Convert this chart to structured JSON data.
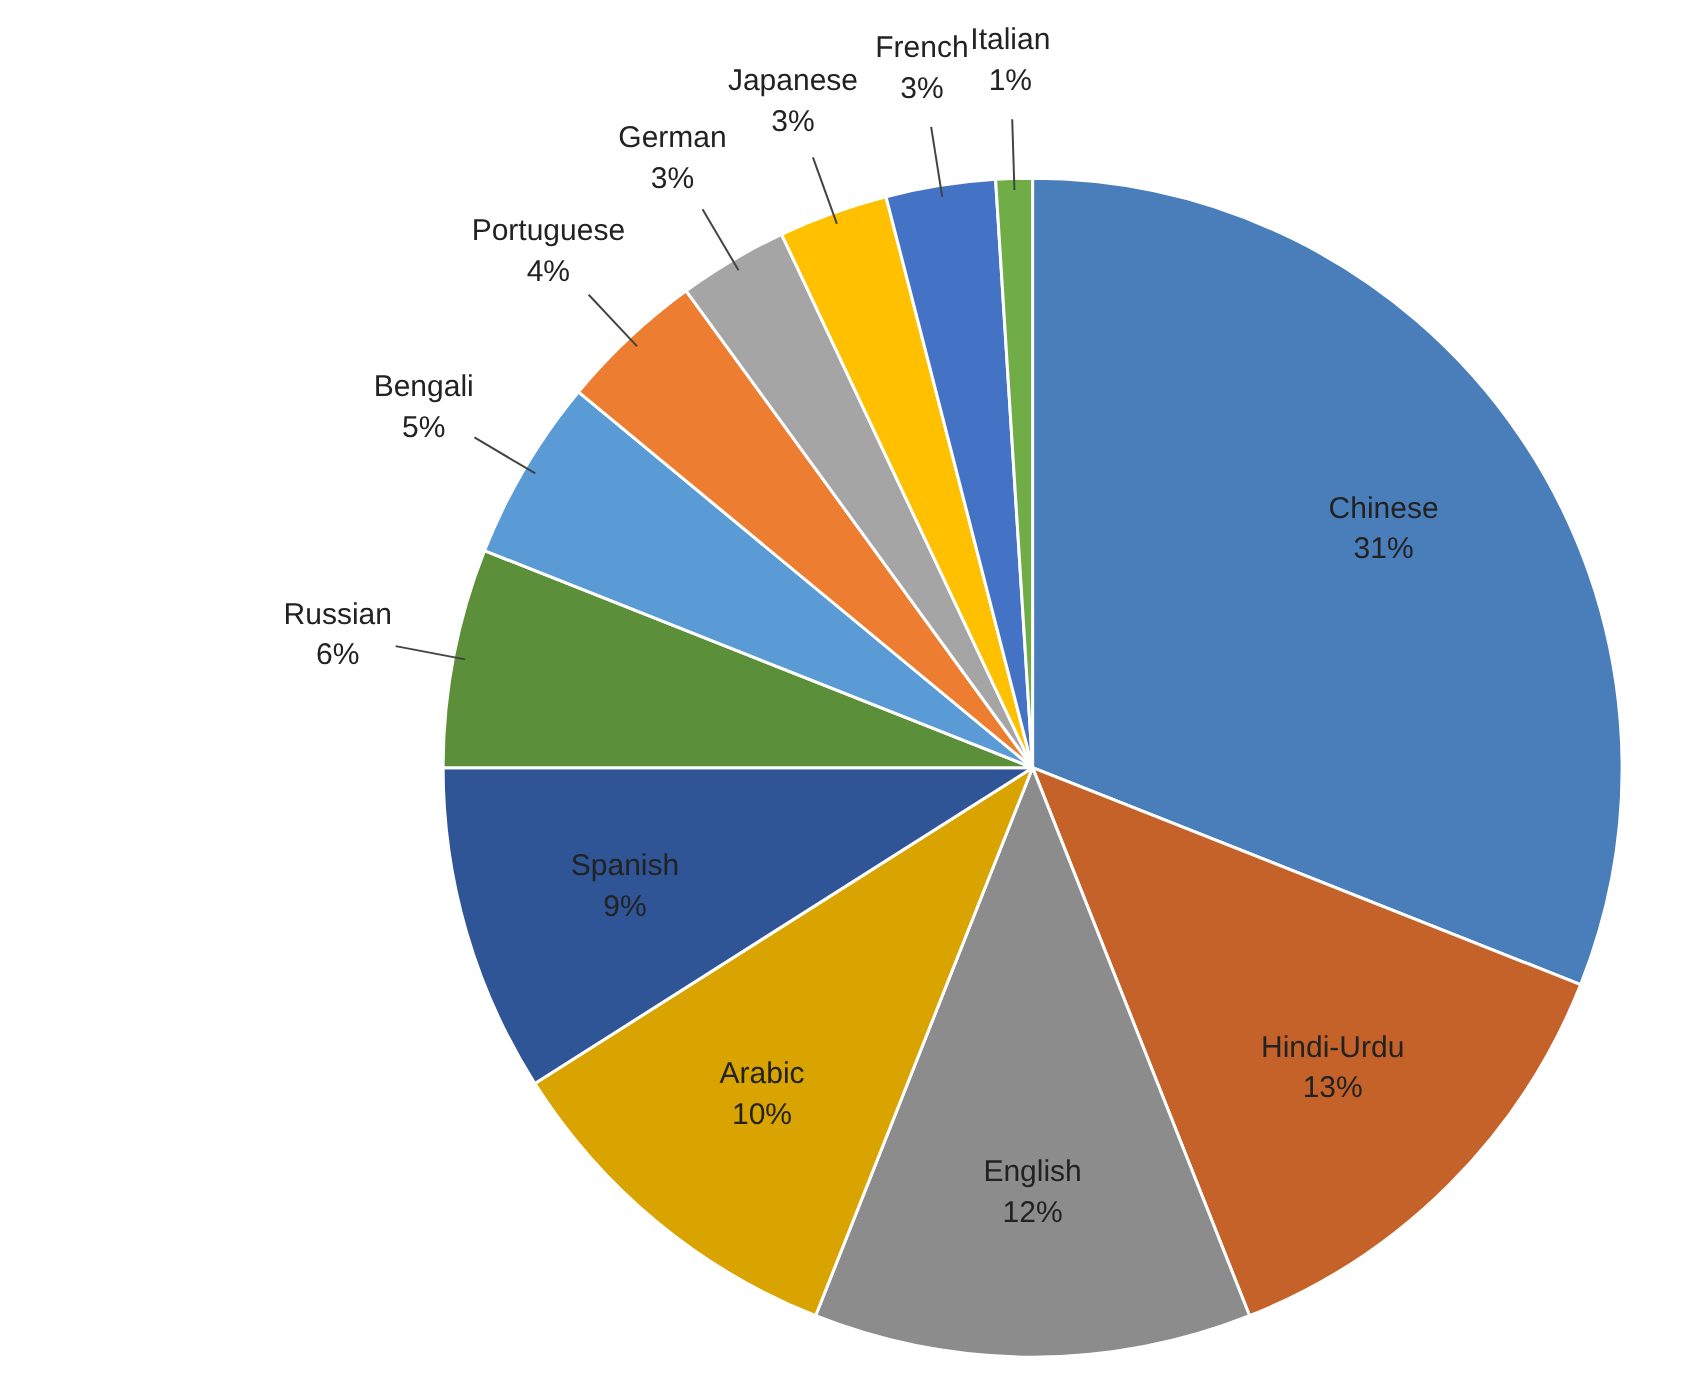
{
  "chart_data": {
    "type": "pie",
    "categories": [
      "Chinese",
      "Hindi-Urdu",
      "English",
      "Arabic",
      "Spanish",
      "Russian",
      "Bengali",
      "Portuguese",
      "German",
      "Japanese",
      "French",
      "Italian"
    ],
    "values": [
      31,
      13,
      12,
      10,
      9,
      6,
      5,
      4,
      3,
      3,
      3,
      1
    ],
    "value_labels": [
      "31%",
      "13%",
      "12%",
      "10%",
      "9%",
      "6%",
      "5%",
      "4%",
      "3%",
      "3%",
      "3%",
      "1%"
    ],
    "colors": [
      "#4a7ebb",
      "#c5622a",
      "#8c8c8c",
      "#d9a300",
      "#2f5597",
      "#5b8f3a",
      "#5b9bd5",
      "#ed7d31",
      "#a5a5a5",
      "#ffc000",
      "#4472c4",
      "#70ad47"
    ],
    "legend": false
  }
}
